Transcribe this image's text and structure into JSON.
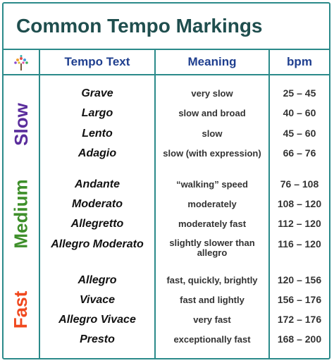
{
  "title": "Common Tempo Markings",
  "headers": {
    "tempo_text": "Tempo Text",
    "meaning": "Meaning",
    "bpm": "bpm"
  },
  "colors": {
    "border": "#2b8a8a",
    "title": "#1f4e4e",
    "header": "#1f3f8f",
    "slow": "#5a2d9c",
    "medium": "#3e8f2a",
    "fast": "#f0481e"
  },
  "groups": [
    {
      "label": "Slow",
      "rows": [
        {
          "term": "Grave",
          "meaning": "very slow",
          "bpm": "25 – 45"
        },
        {
          "term": "Largo",
          "meaning": "slow and broad",
          "bpm": "40 – 60"
        },
        {
          "term": "Lento",
          "meaning": "slow",
          "bpm": "45 – 60"
        },
        {
          "term": "Adagio",
          "meaning": "slow (with expression)",
          "bpm": "66 – 76"
        }
      ]
    },
    {
      "label": "Medium",
      "rows": [
        {
          "term": "Andante",
          "meaning": "“walking” speed",
          "bpm": "76 – 108"
        },
        {
          "term": "Moderato",
          "meaning": "moderately",
          "bpm": "108 – 120"
        },
        {
          "term": "Allegretto",
          "meaning": "moderately fast",
          "bpm": "112 – 120"
        },
        {
          "term": "Allegro Moderato",
          "meaning": "slightly slower than allegro",
          "bpm": "116 – 120"
        }
      ]
    },
    {
      "label": "Fast",
      "rows": [
        {
          "term": "Allegro",
          "meaning": "fast, quickly, brightly",
          "bpm": "120 – 156"
        },
        {
          "term": "Vivace",
          "meaning": "fast and lightly",
          "bpm": "156 – 176"
        },
        {
          "term": "Allegro Vivace",
          "meaning": "very fast",
          "bpm": "172 – 176"
        },
        {
          "term": "Presto",
          "meaning": "exceptionally fast",
          "bpm": "168 – 200"
        }
      ]
    }
  ]
}
